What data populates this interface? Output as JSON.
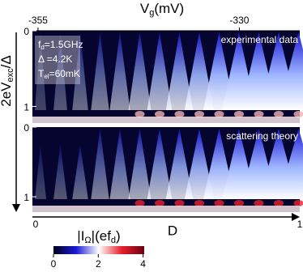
{
  "chart_data": {
    "type": "heatmap",
    "top_axis": {
      "label": [
        "V",
        "g",
        "(mV)"
      ],
      "xlim": [
        -355.7,
        -322.5
      ],
      "xticks": [
        -355,
        -330
      ]
    },
    "left_axis": {
      "label": [
        "2eV",
        "exc",
        "/Δ"
      ]
    },
    "panels": [
      {
        "annotation": "experimental data",
        "ylim": [
          0,
          1.22
        ],
        "yticks": [
          0,
          1
        ]
      },
      {
        "annotation": "scattering theory",
        "ylim": [
          0,
          1.22
        ],
        "yticks": [
          0,
          1
        ]
      }
    ],
    "parameters": [
      [
        "f",
        "d",
        "=1.5GHz"
      ],
      [
        "Δ =4.2K"
      ],
      [
        "T",
        "el",
        "=60mK"
      ]
    ],
    "bottom_axis": {
      "label": "D",
      "xlim": [
        0,
        1
      ],
      "xticks": [
        0,
        1
      ]
    },
    "colorbar": {
      "label": [
        "|I",
        "Ω",
        "|(ef",
        "d",
        ")"
      ],
      "clim": [
        0,
        4.05
      ],
      "ticks": [
        0,
        2,
        4
      ],
      "colors": [
        "#000018",
        "#1a1ad8",
        "#ffffff",
        "#e8202c",
        "#6a0010"
      ]
    }
  }
}
